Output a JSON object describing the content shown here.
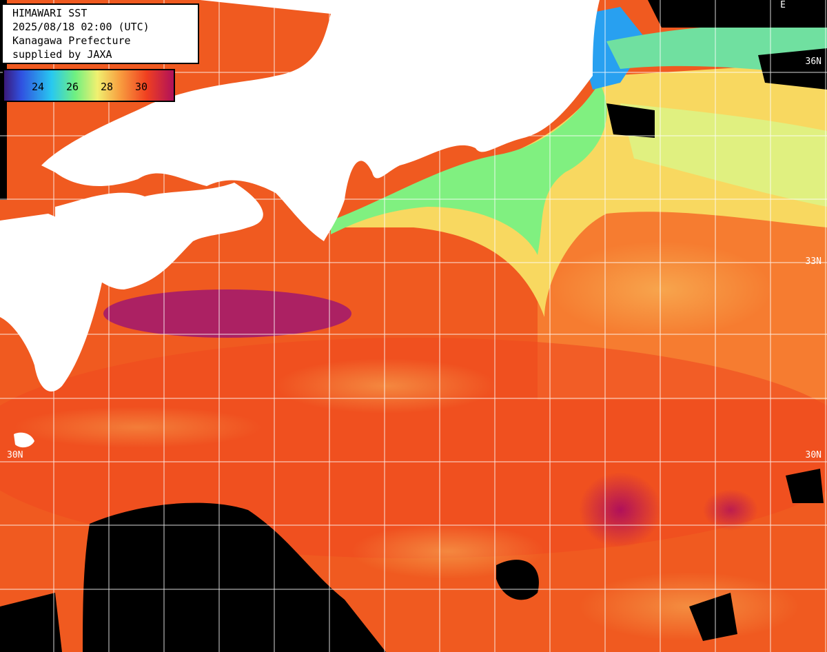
{
  "info": {
    "lines": [
      "HIMAWARI SST",
      "2025/08/18 02:00 (UTC)",
      "Kanagawa Prefecture",
      "supplied by JAXA"
    ]
  },
  "legend": {
    "labels": [
      "24",
      "26",
      "28",
      "30"
    ]
  },
  "grid": {
    "lat_labels": [
      "36N",
      "33N",
      "30N"
    ],
    "corner_label": "E"
  },
  "colors": {
    "land": "#ffffff",
    "no_data": "#000000",
    "grid": "#ffffff",
    "sst_hot": "#b0105a",
    "sst_warm": "#f04020",
    "sst_mild": "#f8a040",
    "sst_cool": "#f0f070",
    "sst_cold": "#70f080",
    "sst_colder": "#28c8f0"
  }
}
